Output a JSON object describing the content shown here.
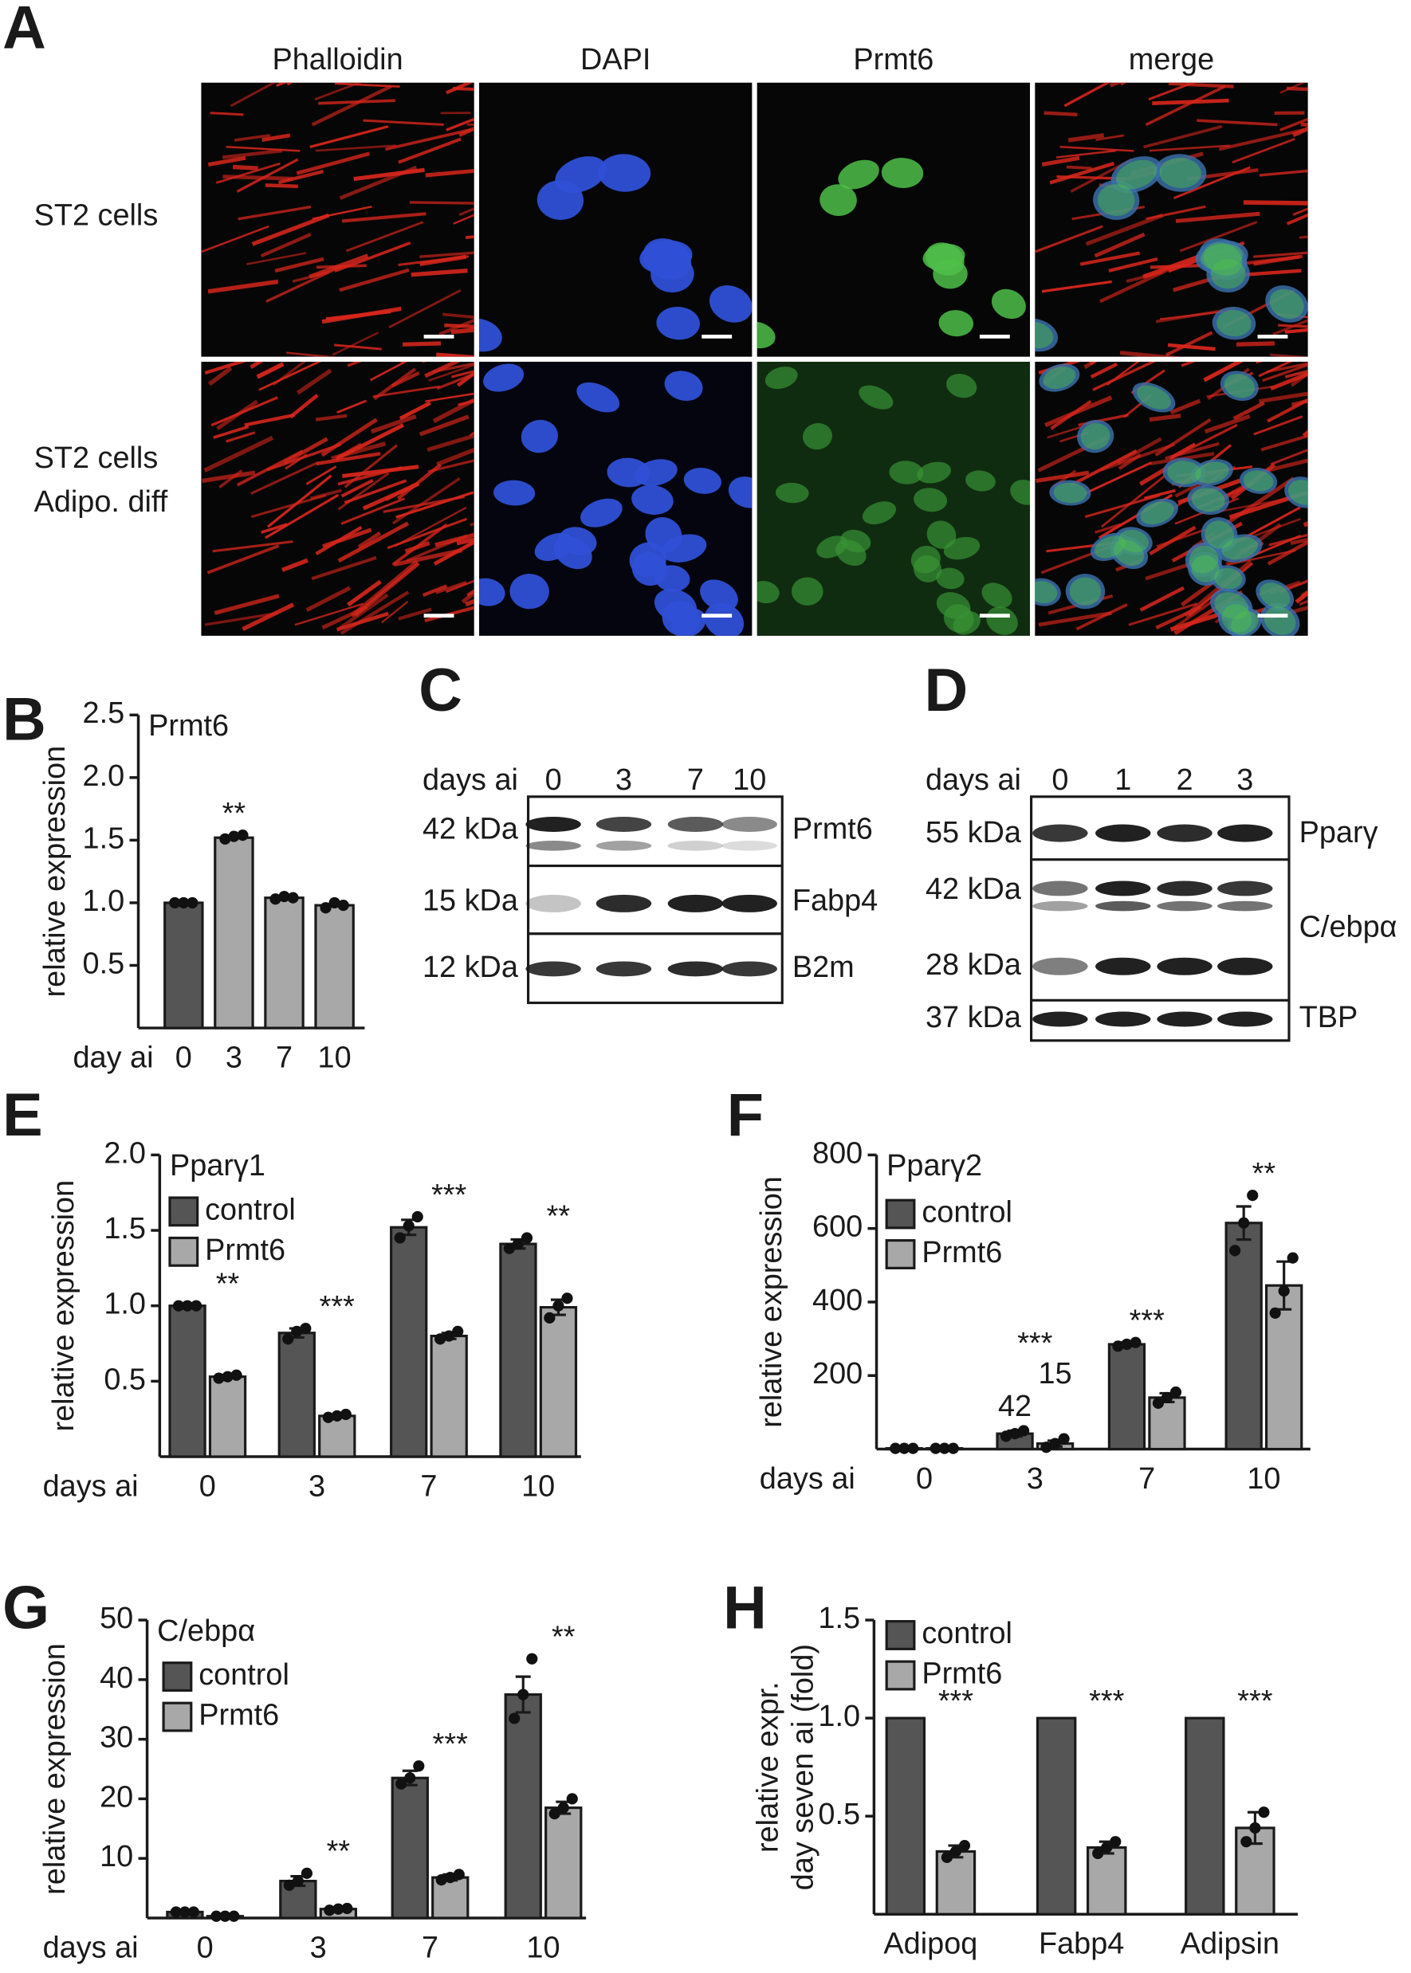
{
  "panel_a": {
    "panel": "A",
    "columns": [
      "Phalloidin",
      "DAPI",
      "Prmt6",
      "merge"
    ],
    "rows": [
      [
        "ST2 cells"
      ],
      [
        "ST2 cells",
        "Adipo. diff"
      ]
    ]
  },
  "panel_c": {
    "panel": "C",
    "xlabel": "days ai",
    "lanes": [
      "0",
      "3",
      "7",
      "10"
    ],
    "size_labels": [
      "42 kDa",
      "15 kDa",
      "12 kDa"
    ],
    "labels": [
      "Prmt6",
      "Fabp4",
      "B2m"
    ]
  },
  "panel_d": {
    "panel": "D",
    "xlabel": "days ai",
    "lanes": [
      "0",
      "1",
      "2",
      "3"
    ],
    "size_labels": [
      "55 kDa",
      "42 kDa",
      "28 kDa",
      "37 kDa"
    ],
    "labels": [
      "Pparγ",
      "C/ebpα",
      "TBP"
    ]
  },
  "chart_data": [
    {
      "panel": "B",
      "type": "bar",
      "title": "Prmt6",
      "ylabel": [
        "relative expression"
      ],
      "xlabel": "day ai",
      "categories": [
        "0",
        "3",
        "7",
        "10"
      ],
      "values": [
        1.0,
        1.52,
        1.04,
        0.98
      ],
      "colors": [
        "#555555",
        "#a8a8a8",
        "#a8a8a8",
        "#a8a8a8"
      ],
      "points": [
        [
          1.0,
          1.0,
          1.0
        ],
        [
          1.51,
          1.53,
          1.54
        ],
        [
          1.03,
          1.05,
          1.04
        ],
        [
          0.96,
          1.0,
          0.98
        ]
      ],
      "annotations": [
        null,
        "**",
        null,
        null
      ],
      "ylim": [
        0,
        2.5
      ],
      "yticks": [
        0.5,
        {
          "value": 1.0,
          "label": "1.0"
        },
        1.5,
        {
          "value": 2.0,
          "label": "2.0"
        },
        2.5
      ]
    },
    {
      "panel": "E",
      "type": "bar",
      "title": "Pparγ1",
      "ylabel": [
        "relative expression"
      ],
      "xlabel": "days ai",
      "categories": [
        "0",
        "3",
        "7",
        "10"
      ],
      "series": [
        {
          "name": "control",
          "color": "#555555",
          "values": [
            1.0,
            0.82,
            1.52,
            1.41
          ],
          "errors": [
            0,
            0.03,
            0.05,
            0.03
          ],
          "points": [
            [
              1.0,
              1.0,
              1.0
            ],
            [
              0.78,
              0.83,
              0.85
            ],
            [
              1.45,
              1.53,
              1.59
            ],
            [
              1.38,
              1.41,
              1.45
            ]
          ]
        },
        {
          "name": "Prmt6",
          "color": "#a8a8a8",
          "values": [
            0.53,
            0.27,
            0.8,
            0.99
          ],
          "errors": [
            0.01,
            0.01,
            0.02,
            0.05
          ],
          "points": [
            [
              0.52,
              0.53,
              0.54
            ],
            [
              0.26,
              0.27,
              0.28
            ],
            [
              0.78,
              0.8,
              0.83
            ],
            [
              0.92,
              1.0,
              1.05
            ]
          ]
        }
      ],
      "annotations": [
        "**",
        "***",
        "***",
        "**"
      ],
      "ylim": [
        0,
        2.0
      ],
      "yticks": [
        0.5,
        {
          "value": 1.0,
          "label": "1.0"
        },
        1.5,
        {
          "value": 2.0,
          "label": "2.0"
        }
      ],
      "legend": "upper left"
    },
    {
      "panel": "F",
      "type": "bar",
      "title": "Pparγ2",
      "ylabel": [
        "relative expression"
      ],
      "xlabel": "days ai",
      "categories": [
        "0",
        "3",
        "7",
        "10"
      ],
      "series": [
        {
          "name": "control",
          "color": "#555555",
          "values": [
            2,
            42,
            285,
            615
          ],
          "errors": [
            0,
            8,
            5,
            45
          ],
          "points": [
            [
              2,
              2,
              2
            ],
            [
              35,
              42,
              50
            ],
            [
              280,
              285,
              290
            ],
            [
              540,
              615,
              690
            ]
          ],
          "value_labels": [
            null,
            "42",
            null,
            null
          ]
        },
        {
          "name": "Prmt6",
          "color": "#a8a8a8",
          "values": [
            2,
            15,
            140,
            445
          ],
          "errors": [
            0,
            8,
            12,
            65
          ],
          "points": [
            [
              2,
              2,
              2
            ],
            [
              5,
              15,
              28
            ],
            [
              125,
              140,
              155
            ],
            [
              370,
              430,
              520
            ]
          ],
          "value_labels": [
            null,
            "15",
            null,
            null
          ]
        }
      ],
      "annotations": [
        null,
        "***",
        "***",
        "**"
      ],
      "ylim": [
        0,
        800
      ],
      "yticks": [
        200,
        400,
        600,
        800
      ],
      "legend": "upper left"
    },
    {
      "panel": "G",
      "type": "bar",
      "title": "C/ebpα",
      "ylabel": [
        "relative expression"
      ],
      "xlabel": "days ai",
      "categories": [
        "0",
        "3",
        "7",
        "10"
      ],
      "series": [
        {
          "name": "control",
          "color": "#555555",
          "values": [
            1.0,
            6.2,
            23.5,
            37.5
          ],
          "errors": [
            0,
            0.8,
            1.2,
            3.0
          ],
          "points": [
            [
              1.0,
              1.0,
              1.0
            ],
            [
              5.5,
              6.2,
              7.5
            ],
            [
              22.5,
              23.5,
              25.5
            ],
            [
              33.5,
              37.5,
              43.5
            ]
          ]
        },
        {
          "name": "Prmt6",
          "color": "#a8a8a8",
          "values": [
            0.3,
            1.5,
            6.8,
            18.5
          ],
          "errors": [
            0,
            0.2,
            0.5,
            1.0
          ],
          "points": [
            [
              0.3,
              0.3,
              0.3
            ],
            [
              1.3,
              1.5,
              1.6
            ],
            [
              6.4,
              6.8,
              7.3
            ],
            [
              17.5,
              18.5,
              20.0
            ]
          ]
        }
      ],
      "annotations": [
        null,
        "**",
        "***",
        "**"
      ],
      "ylim": [
        0,
        50
      ],
      "yticks": [
        10,
        20,
        30,
        40,
        50
      ],
      "legend": "upper left"
    },
    {
      "panel": "H",
      "type": "bar",
      "ylabel": [
        "relative expr.",
        "day seven ai (fold)"
      ],
      "categories": [
        "Adipoq",
        "Fabp4",
        "Adipsin"
      ],
      "series": [
        {
          "name": "control",
          "color": "#555555",
          "values": [
            1.0,
            1.0,
            1.0
          ],
          "errors": [
            0,
            0,
            0
          ]
        },
        {
          "name": "Prmt6",
          "color": "#a8a8a8",
          "values": [
            0.32,
            0.34,
            0.44
          ],
          "errors": [
            0.03,
            0.03,
            0.08
          ],
          "points": [
            [
              0.29,
              0.32,
              0.35
            ],
            [
              0.31,
              0.34,
              0.37
            ],
            [
              0.37,
              0.44,
              0.52
            ]
          ]
        }
      ],
      "annotations": [
        "***",
        "***",
        "***"
      ],
      "ylim": [
        0,
        1.5
      ],
      "yticks": [
        0.5,
        {
          "value": 1.0,
          "label": "1.0"
        },
        1.5
      ],
      "legend": "upper left"
    }
  ]
}
